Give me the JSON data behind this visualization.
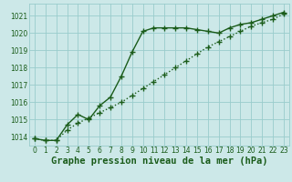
{
  "title": "Graphe pression niveau de la mer (hPa)",
  "bg_color": "#cce8e8",
  "grid_color": "#99cccc",
  "line_color": "#1a5c1a",
  "xlim": [
    -0.5,
    23.5
  ],
  "ylim": [
    1013.5,
    1021.7
  ],
  "yticks": [
    1014,
    1015,
    1016,
    1017,
    1018,
    1019,
    1020,
    1021
  ],
  "xticks": [
    0,
    1,
    2,
    3,
    4,
    5,
    6,
    7,
    8,
    9,
    10,
    11,
    12,
    13,
    14,
    15,
    16,
    17,
    18,
    19,
    20,
    21,
    22,
    23
  ],
  "series1_x": [
    0,
    1,
    2,
    3,
    4,
    5,
    6,
    7,
    8,
    9,
    10,
    11,
    12,
    13,
    14,
    15,
    16,
    17,
    18,
    19,
    20,
    21,
    22,
    23
  ],
  "series1_y": [
    1013.9,
    1013.8,
    1013.8,
    1014.7,
    1015.3,
    1015.0,
    1015.8,
    1016.3,
    1017.5,
    1018.9,
    1020.1,
    1020.3,
    1020.3,
    1020.3,
    1020.3,
    1020.2,
    1020.1,
    1020.0,
    1020.3,
    1020.5,
    1020.6,
    1020.8,
    1021.0,
    1021.2
  ],
  "series2_x": [
    0,
    1,
    2,
    3,
    4,
    5,
    6,
    7,
    8,
    9,
    10,
    11,
    12,
    13,
    14,
    15,
    16,
    17,
    18,
    19,
    20,
    21,
    22,
    23
  ],
  "series2_y": [
    1013.9,
    1013.8,
    1013.8,
    1014.4,
    1014.8,
    1015.1,
    1015.4,
    1015.7,
    1016.0,
    1016.4,
    1016.8,
    1017.2,
    1017.6,
    1018.0,
    1018.4,
    1018.8,
    1019.2,
    1019.5,
    1019.8,
    1020.1,
    1020.4,
    1020.6,
    1020.8,
    1021.1
  ],
  "marker_size": 4,
  "linewidth": 1.0,
  "title_fontsize": 7.5,
  "tick_fontsize": 5.5
}
